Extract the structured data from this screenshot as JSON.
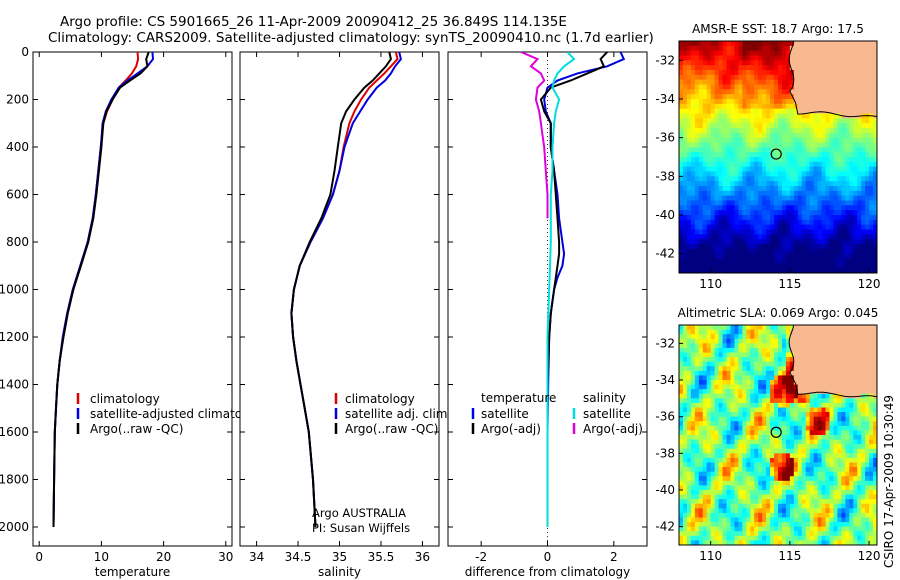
{
  "header": {
    "line1": "Argo profile: CS 5901665_26 11-Apr-2009 20090412_25 36.849S 114.135E",
    "line2": "Climatology: CARS2009. Satellite-adjusted climatology: synTS_20090410.nc (1.7d earlier)"
  },
  "side_label": "CSIRO 17-Apr-2009 10:30:49",
  "chart_data": [
    {
      "type": "line",
      "id": "temperature",
      "xlabel": "temperature",
      "ylabel": "",
      "xlim": [
        -1,
        31
      ],
      "ylim": [
        2080,
        0
      ],
      "xticks": [
        0,
        10,
        20,
        30
      ],
      "yticks": [
        0,
        200,
        400,
        600,
        800,
        1000,
        1200,
        1400,
        1600,
        1800,
        2000
      ],
      "grid": false,
      "legend_location": "lower-middle",
      "legend": [
        "climatology",
        "satellite-adjusted climatology",
        "Argo(..raw -QC)"
      ],
      "series": [
        {
          "name": "climatology",
          "color": "#dd0000",
          "x": [
            15.8,
            15.9,
            15.6,
            14.9,
            13.9,
            12.8,
            11.8,
            10.9,
            10.3,
            9.9,
            9.5,
            9.1,
            8.6,
            7.8,
            6.6,
            5.4,
            4.5,
            3.8,
            3.3,
            2.9,
            2.7,
            2.5,
            2.4,
            2.3
          ],
          "y": [
            0,
            30,
            60,
            90,
            120,
            150,
            200,
            250,
            300,
            400,
            500,
            600,
            700,
            800,
            900,
            1000,
            1100,
            1200,
            1300,
            1400,
            1500,
            1600,
            1800,
            2000
          ]
        },
        {
          "name": "satellite-adjusted climatology",
          "color": "#0000dd",
          "x": [
            18.2,
            18.3,
            17.4,
            15.8,
            14.2,
            12.8,
            11.6,
            10.7,
            10.2,
            9.9,
            9.5,
            9.1,
            8.6,
            7.8,
            6.6,
            5.4,
            4.5,
            3.8,
            3.3,
            2.9,
            2.7,
            2.5,
            2.4,
            2.3
          ],
          "y": [
            0,
            30,
            60,
            90,
            120,
            150,
            200,
            250,
            300,
            400,
            500,
            600,
            700,
            800,
            900,
            1000,
            1100,
            1200,
            1300,
            1400,
            1500,
            1600,
            1800,
            2000
          ]
        },
        {
          "name": "Argo(..raw -QC)",
          "color": "#000000",
          "x": [
            17.6,
            17.2,
            17.4,
            16.3,
            14.6,
            13.0,
            11.8,
            10.8,
            10.3,
            10.0,
            9.6,
            9.2,
            8.7,
            7.9,
            6.7,
            5.5,
            4.6,
            3.9,
            3.3,
            2.9,
            2.7,
            2.5,
            2.4,
            2.3
          ],
          "y": [
            0,
            30,
            60,
            90,
            120,
            150,
            200,
            250,
            300,
            400,
            500,
            600,
            700,
            800,
            900,
            1000,
            1100,
            1200,
            1300,
            1400,
            1500,
            1600,
            1800,
            2000
          ]
        }
      ]
    },
    {
      "type": "line",
      "id": "salinity",
      "xlabel": "salinity",
      "ylabel": "",
      "xlim": [
        33.8,
        36.2
      ],
      "ylim": [
        2080,
        0
      ],
      "xticks": [
        34,
        34.5,
        35,
        35.5,
        36
      ],
      "xticklabels": [
        "34",
        "34.5",
        "35",
        "35.5",
        "36"
      ],
      "grid": false,
      "legend_location": "lower-right",
      "legend": [
        "climatology",
        "satellite adj. clim.",
        "Argo(..raw -QC)"
      ],
      "annotation": [
        "Argo AUSTRALIA",
        "PI: Susan Wijffels"
      ],
      "series": [
        {
          "name": "climatology",
          "color": "#dd0000",
          "x": [
            35.68,
            35.7,
            35.62,
            35.54,
            35.45,
            35.36,
            35.26,
            35.18,
            35.12,
            35.05,
            35.0,
            34.92,
            34.8,
            34.65,
            34.52,
            34.45,
            34.42,
            34.44,
            34.48,
            34.53,
            34.58,
            34.63,
            34.68,
            34.71
          ],
          "y": [
            0,
            30,
            60,
            90,
            120,
            150,
            200,
            250,
            300,
            400,
            500,
            600,
            700,
            800,
            900,
            1000,
            1100,
            1200,
            1300,
            1400,
            1500,
            1600,
            1800,
            2000
          ]
        },
        {
          "name": "satellite adj. clim.",
          "color": "#0000dd",
          "x": [
            35.72,
            35.74,
            35.67,
            35.62,
            35.55,
            35.45,
            35.34,
            35.25,
            35.16,
            35.06,
            35.0,
            34.92,
            34.8,
            34.65,
            34.52,
            34.45,
            34.42,
            34.44,
            34.48,
            34.53,
            34.58,
            34.63,
            34.68,
            34.71
          ],
          "y": [
            0,
            30,
            60,
            90,
            120,
            150,
            200,
            250,
            300,
            400,
            500,
            600,
            700,
            800,
            900,
            1000,
            1100,
            1200,
            1300,
            1400,
            1500,
            1600,
            1800,
            2000
          ]
        },
        {
          "name": "Argo(..raw -QC)",
          "color": "#000000",
          "x": [
            35.6,
            35.62,
            35.56,
            35.48,
            35.4,
            35.3,
            35.18,
            35.08,
            35.02,
            34.98,
            34.94,
            34.89,
            34.78,
            34.64,
            34.52,
            34.45,
            34.42,
            34.44,
            34.48,
            34.53,
            34.58,
            34.63,
            34.68,
            34.71
          ],
          "y": [
            0,
            30,
            60,
            90,
            120,
            150,
            200,
            250,
            300,
            400,
            500,
            600,
            700,
            800,
            900,
            1000,
            1100,
            1200,
            1300,
            1400,
            1500,
            1600,
            1800,
            2000
          ]
        }
      ]
    },
    {
      "type": "line",
      "id": "difference",
      "xlabel": "difference from climatology",
      "ylabel": "",
      "xlim": [
        -3,
        3
      ],
      "ylim": [
        2080,
        0
      ],
      "xticks": [
        -2,
        0,
        2
      ],
      "grid": false,
      "legend_location": "lower-middle",
      "legend_columns": [
        {
          "header": "temperature",
          "items": [
            "satellite",
            "Argo(-adj)"
          ]
        },
        {
          "header": "salinity",
          "items": [
            "satellite",
            "Argo(-adj)"
          ]
        }
      ],
      "series": [
        {
          "name": "satellite",
          "group": "temperature",
          "color": "#0000dd",
          "x": [
            2.2,
            2.3,
            1.8,
            0.9,
            0.3,
            0.0,
            -0.1,
            -0.05,
            0.1,
            0.1,
            0.2,
            0.3,
            0.35,
            0.45,
            0.5,
            0.45,
            0.3,
            0.2,
            0.1,
            0.05,
            0.02,
            0.0,
            0.0
          ],
          "y": [
            0,
            30,
            60,
            90,
            120,
            150,
            200,
            250,
            300,
            400,
            500,
            600,
            700,
            800,
            850,
            900,
            950,
            1000,
            1100,
            1200,
            1400,
            1600,
            2000
          ]
        },
        {
          "name": "Argo(-adj)",
          "group": "temperature",
          "color": "#000000",
          "x": [
            1.8,
            1.6,
            1.7,
            1.2,
            0.7,
            0.1,
            -0.2,
            -0.1,
            0.1,
            0.1,
            0.2,
            0.25,
            0.3,
            0.35,
            0.35,
            0.3,
            0.2,
            0.1,
            0.05,
            0.0,
            0.0,
            0.0
          ],
          "y": [
            0,
            30,
            60,
            90,
            120,
            150,
            200,
            250,
            300,
            400,
            500,
            600,
            700,
            800,
            850,
            900,
            1000,
            1100,
            1200,
            1400,
            1600,
            2000
          ]
        },
        {
          "name": "satellite",
          "group": "salinity",
          "color": "#00dddd",
          "x": [
            0.6,
            0.8,
            0.5,
            0.3,
            0.2,
            0.15,
            0.35,
            0.25,
            0.2,
            0.15,
            0.15,
            0.1,
            0.1,
            0.05,
            0.0,
            0.0,
            0.0
          ],
          "y": [
            0,
            30,
            60,
            90,
            120,
            150,
            200,
            250,
            300,
            400,
            500,
            600,
            800,
            1000,
            1200,
            1600,
            2000
          ]
        },
        {
          "name": "Argo(-adj)",
          "group": "salinity",
          "color": "#dd00dd",
          "x": [
            -0.8,
            -0.3,
            -0.5,
            -0.2,
            -0.1,
            -0.3,
            -0.35,
            -0.25,
            -0.2,
            -0.15,
            -0.1,
            -0.05,
            0.0,
            0.0
          ],
          "y": [
            0,
            30,
            60,
            90,
            120,
            150,
            200,
            250,
            300,
            350,
            400,
            500,
            600,
            700
          ]
        }
      ]
    },
    {
      "type": "heatmap",
      "id": "sst_map",
      "title": "AMSR-E SST: 18.7 Argo: 17.5",
      "xlim": [
        108,
        120.5
      ],
      "ylim": [
        -43,
        -31
      ],
      "xticks": [
        110,
        115,
        120
      ],
      "yticks": [
        -32,
        -34,
        -36,
        -38,
        -40,
        -42
      ],
      "argo_position": [
        114.135,
        -36.849
      ],
      "land_color": "#f8b890"
    },
    {
      "type": "heatmap",
      "id": "sla_map",
      "title": "Altimetric SLA: 0.069 Argo: 0.045",
      "xlim": [
        108,
        120.5
      ],
      "ylim": [
        -43,
        -31
      ],
      "xticks": [
        110,
        115,
        120
      ],
      "yticks": [
        -32,
        -34,
        -36,
        -38,
        -40,
        -42
      ],
      "argo_position": [
        114.135,
        -36.849
      ],
      "land_color": "#f8b890"
    }
  ]
}
